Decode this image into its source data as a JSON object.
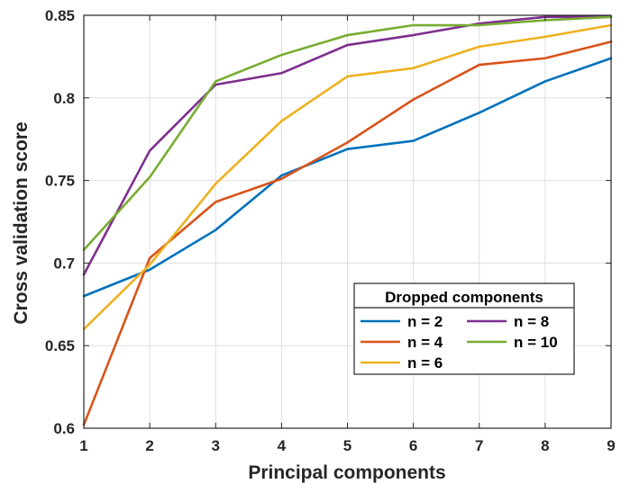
{
  "chart_data": {
    "type": "line",
    "title": "",
    "xlabel": "Principal components",
    "ylabel": "Cross validation score",
    "x": [
      1,
      2,
      3,
      4,
      5,
      6,
      7,
      8,
      9
    ],
    "xlim": [
      1,
      9
    ],
    "ylim": [
      0.6,
      0.85
    ],
    "x_ticks": [
      "1",
      "2",
      "3",
      "4",
      "5",
      "6",
      "7",
      "8",
      "9"
    ],
    "y_ticks": [
      "0.6",
      "0.65",
      "0.7",
      "0.75",
      "0.8",
      "0.85"
    ],
    "grid": true,
    "legend": {
      "title": "Dropped components",
      "placement": "lower-right",
      "columns": 2
    },
    "series": [
      {
        "name": "n = 2",
        "color": "#0072BD",
        "values": [
          0.68,
          0.696,
          0.72,
          0.753,
          0.769,
          0.774,
          0.791,
          0.81,
          0.824
        ]
      },
      {
        "name": "n = 4",
        "color": "#D95319",
        "values": [
          0.602,
          0.703,
          0.737,
          0.751,
          0.773,
          0.799,
          0.82,
          0.824,
          0.834
        ]
      },
      {
        "name": "n = 6",
        "color": "#EDB120",
        "values": [
          0.66,
          0.699,
          0.748,
          0.786,
          0.813,
          0.818,
          0.831,
          0.837,
          0.844
        ]
      },
      {
        "name": "n = 8",
        "color": "#7E2F8E",
        "values": [
          0.693,
          0.768,
          0.808,
          0.815,
          0.832,
          0.838,
          0.845,
          0.849,
          0.849
        ]
      },
      {
        "name": "n = 10",
        "color": "#77AC30",
        "values": [
          0.708,
          0.752,
          0.81,
          0.826,
          0.838,
          0.844,
          0.844,
          0.847,
          0.849
        ]
      }
    ]
  }
}
